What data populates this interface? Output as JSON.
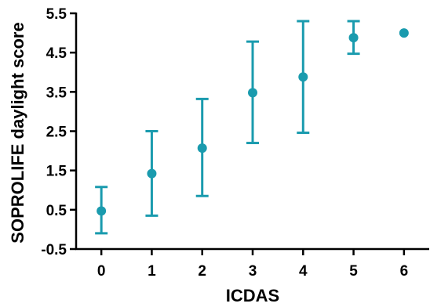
{
  "chart_data": {
    "type": "scatter",
    "title": "",
    "xlabel": "ICDAS",
    "ylabel": "SOPROLIFE daylight score",
    "x": [
      0,
      1,
      2,
      3,
      4,
      5,
      6
    ],
    "xticks": [
      "0",
      "1",
      "2",
      "3",
      "4",
      "5",
      "6"
    ],
    "xlim": [
      -0.5,
      6.5
    ],
    "yticks": [
      "-0.5",
      "0.5",
      "1.5",
      "2.5",
      "3.5",
      "4.5",
      "5.5"
    ],
    "ylim": [
      -0.5,
      5.5
    ],
    "grid": false,
    "color": "#1a9bae",
    "series": [
      {
        "mean": [
          0.47,
          1.42,
          2.07,
          3.48,
          3.88,
          4.88,
          5.0
        ],
        "lower": [
          -0.1,
          0.35,
          0.85,
          2.2,
          2.46,
          4.47,
          5.0
        ],
        "upper": [
          1.08,
          2.5,
          3.32,
          4.78,
          5.3,
          5.3,
          5.0
        ]
      }
    ]
  }
}
